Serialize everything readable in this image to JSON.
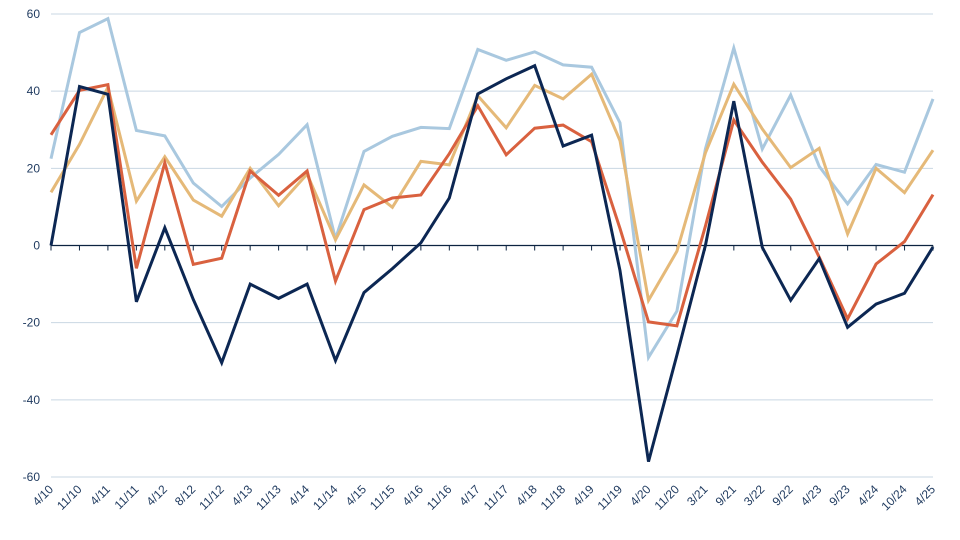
{
  "chart_data": {
    "type": "line",
    "title": "",
    "xlabel": "",
    "ylabel": "",
    "ylim": [
      -60,
      60
    ],
    "yticks": [
      -60,
      -40,
      -20,
      0,
      20,
      40,
      60
    ],
    "grid": true,
    "legend": "none",
    "categories": [
      "4/10",
      "11/10",
      "4/11",
      "11/11",
      "4/12",
      "8/12",
      "11/12",
      "4/13",
      "11/13",
      "4/14",
      "11/14",
      "4/15",
      "11/15",
      "4/16",
      "11/16",
      "4/17",
      "11/17",
      "4/18",
      "11/18",
      "4/19",
      "11/19",
      "4/20",
      "11/20",
      "3/21",
      "9/21",
      "3/22",
      "9/22",
      "4/23",
      "9/23",
      "4/24",
      "10/24",
      "4/25"
    ],
    "series": [
      {
        "color": "#a9c8df",
        "values": [
          22.5,
          55.2,
          58.8,
          29.8,
          28.4,
          16.2,
          10.1,
          17.5,
          23.6,
          31.3,
          1.7,
          24.4,
          28.3,
          30.6,
          30.3,
          50.8,
          48.0,
          50.2,
          46.8,
          46.2,
          31.8,
          -29.0,
          -17.0,
          25.0,
          51.2,
          25.0,
          39.0,
          20.5,
          10.8,
          21.0,
          19.0,
          38.0
        ]
      },
      {
        "color": "#e5b978",
        "values": [
          13.8,
          26.2,
          41.0,
          11.5,
          23.0,
          11.8,
          7.6,
          20.0,
          10.3,
          18.5,
          1.5,
          15.7,
          9.9,
          21.8,
          20.9,
          38.8,
          30.5,
          41.5,
          38.0,
          44.4,
          27.2,
          -14.2,
          -1.5,
          24.0,
          41.8,
          30.2,
          20.2,
          25.2,
          3.0,
          20.0,
          13.7,
          24.7
        ]
      },
      {
        "color": "#d9613f",
        "values": [
          28.7,
          40.2,
          41.7,
          -5.9,
          21.4,
          -4.9,
          -3.3,
          19.3,
          13.0,
          19.3,
          -9.2,
          9.3,
          12.3,
          13.1,
          23.8,
          36.2,
          23.5,
          30.4,
          31.2,
          26.9,
          4.4,
          -19.8,
          -20.8,
          5.0,
          32.5,
          21.6,
          12.0,
          -3.0,
          -19.0,
          -4.8,
          1.0,
          13.2
        ]
      },
      {
        "color": "#0c2753",
        "values": [
          0.0,
          41.2,
          39.2,
          -14.6,
          4.6,
          -14.0,
          -30.4,
          -10.0,
          -13.7,
          -10.0,
          -29.8,
          -12.2,
          -6.0,
          0.7,
          12.3,
          39.3,
          43.2,
          46.6,
          25.8,
          28.6,
          -6.5,
          -56.0,
          -28.4,
          0.0,
          37.4,
          -0.5,
          -14.2,
          -3.4,
          -21.2,
          -15.2,
          -12.4,
          -0.4
        ]
      }
    ]
  }
}
